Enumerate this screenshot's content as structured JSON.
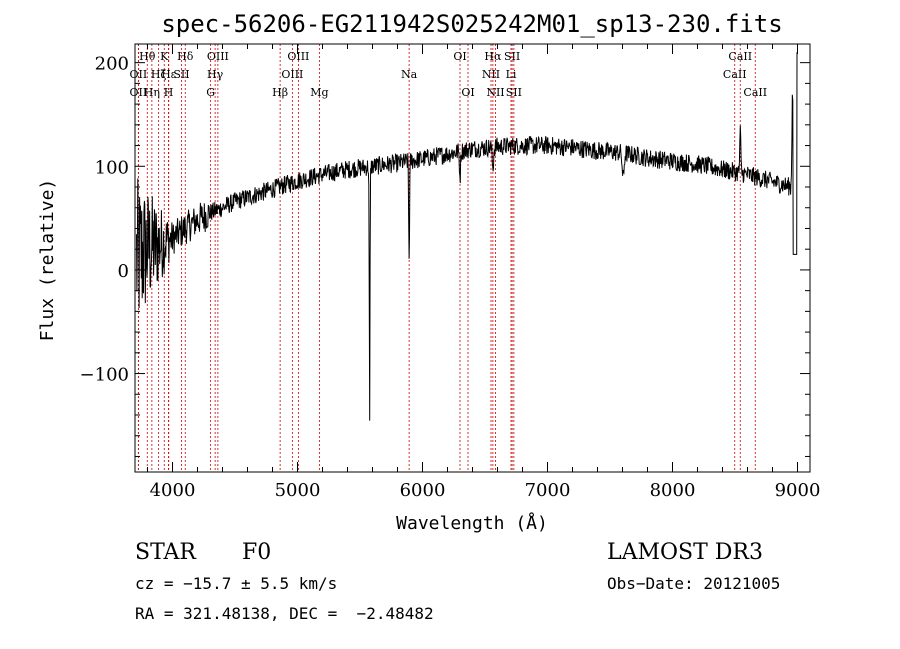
{
  "chart_data": {
    "type": "line",
    "title": "spec-56206-EG211942S025242M01_sp13-230.fits",
    "xlabel": "Wavelength (Å)",
    "ylabel": "Flux (relative)",
    "xlim": [
      3700,
      9100
    ],
    "ylim": [
      -195,
      218
    ],
    "xticks": [
      4000,
      5000,
      6000,
      7000,
      8000,
      9000
    ],
    "xtick_labels": [
      "4000",
      "5000",
      "6000",
      "7000",
      "8000",
      "9000"
    ],
    "yticks": [
      -100,
      0,
      100,
      200
    ],
    "ytick_labels": [
      "−100",
      "0",
      "100",
      "200"
    ],
    "line_color": "#000000",
    "marker_color": "#cc0000",
    "continuum": {
      "x": [
        3700,
        3750,
        3800,
        3850,
        3900,
        3950,
        4000,
        4100,
        4200,
        4300,
        4400,
        4500,
        4600,
        4700,
        4800,
        4900,
        5000,
        5200,
        5400,
        5600,
        5800,
        6000,
        6200,
        6400,
        6600,
        6800,
        7000,
        7200,
        7400,
        7600,
        7800,
        8000,
        8200,
        8400,
        8600,
        8800,
        8950
      ],
      "y": [
        8,
        15,
        20,
        22,
        25,
        28,
        30,
        40,
        48,
        55,
        60,
        66,
        70,
        74,
        78,
        82,
        86,
        92,
        97,
        100,
        103,
        107,
        112,
        117,
        119,
        120,
        120,
        118,
        115,
        113,
        108,
        105,
        102,
        97,
        92,
        85,
        80
      ]
    },
    "features": [
      {
        "x": 5577,
        "depth": 255,
        "width": 4
      },
      {
        "x": 5893,
        "depth": 95,
        "width": 5
      },
      {
        "x": 6300,
        "depth": 25,
        "width": 6
      },
      {
        "x": 6563,
        "depth": 20,
        "width": 8
      },
      {
        "x": 7605,
        "depth": 25,
        "width": 10
      },
      {
        "x": 8542,
        "depth": -40,
        "width": 6
      },
      {
        "x": 8960,
        "depth": -100,
        "width": 6
      }
    ],
    "spectral_lines": [
      {
        "label": "Hθ",
        "x": 3798,
        "row": 0
      },
      {
        "label": "OII",
        "x": 3727,
        "row": 1
      },
      {
        "label": "OII",
        "x": 3727,
        "row": 2
      },
      {
        "label": "K",
        "x": 3934,
        "row": 0
      },
      {
        "label": "Hε",
        "x": 3970,
        "row": 1
      },
      {
        "label": "Hη",
        "x": 3835,
        "row": 2
      },
      {
        "label": "Hζ",
        "x": 3889,
        "row": 1
      },
      {
        "label": "H",
        "x": 3968,
        "row": 2
      },
      {
        "label": "Hδ",
        "x": 4102,
        "row": 0
      },
      {
        "label": "SII",
        "x": 4072,
        "row": 1
      },
      {
        "label": "OIII",
        "x": 4363,
        "row": 0
      },
      {
        "label": "Hγ",
        "x": 4341,
        "row": 1
      },
      {
        "label": "G",
        "x": 4305,
        "row": 2
      },
      {
        "label": "Hβ",
        "x": 4861,
        "row": 2
      },
      {
        "label": "OIII",
        "x": 5007,
        "row": 0
      },
      {
        "label": "OIII",
        "x": 4959,
        "row": 1
      },
      {
        "label": "Mg",
        "x": 5175,
        "row": 2
      },
      {
        "label": "Na",
        "x": 5893,
        "row": 1
      },
      {
        "label": "OI",
        "x": 6300,
        "row": 0
      },
      {
        "label": "OI",
        "x": 6364,
        "row": 2
      },
      {
        "label": "Hα",
        "x": 6563,
        "row": 0
      },
      {
        "label": "NII",
        "x": 6548,
        "row": 1
      },
      {
        "label": "NII",
        "x": 6584,
        "row": 2
      },
      {
        "label": "SII",
        "x": 6717,
        "row": 0
      },
      {
        "label": "Li",
        "x": 6708,
        "row": 1
      },
      {
        "label": "SII",
        "x": 6731,
        "row": 2
      },
      {
        "label": "CaII",
        "x": 8542,
        "row": 0
      },
      {
        "label": "CaII",
        "x": 8498,
        "row": 1
      },
      {
        "label": "CaII",
        "x": 8662,
        "row": 2
      }
    ]
  },
  "info": {
    "object_class": "STAR",
    "subclass": "F0",
    "survey": "LAMOST DR3",
    "cz": "cz = −15.7 ± 5.5 km/s",
    "obs_date": "Obs−Date: 20121005",
    "coords": "RA = 321.48138, DEC =  −2.48482"
  }
}
